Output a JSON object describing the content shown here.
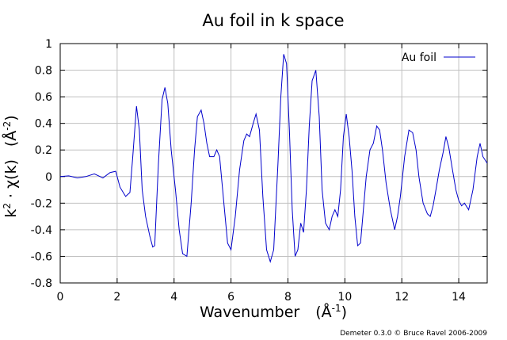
{
  "chart_data": {
    "type": "line",
    "title": "Au foil in k space",
    "xlabel": {
      "main": "Wavenumber",
      "unit_pre": "(Å",
      "unit_sup": "-1",
      "unit_post": ")"
    },
    "ylabel": {
      "k": "k",
      "k_sup": "2",
      "mid": " · χ(k)",
      "unit_pre": "(Å",
      "unit_sup": "-2",
      "unit_post": ")"
    },
    "xlim": [
      0,
      15
    ],
    "ylim": [
      -0.8,
      1
    ],
    "xticks": [
      0,
      2,
      4,
      6,
      8,
      10,
      12,
      14
    ],
    "xtick_labels": [
      "0",
      "2",
      "4",
      "6",
      "8",
      "10",
      "12",
      "14"
    ],
    "yticks": [
      -0.8,
      -0.6,
      -0.4,
      -0.2,
      0,
      0.2,
      0.4,
      0.6,
      0.8,
      1
    ],
    "ytick_labels": [
      "-0.8",
      "-0.6",
      "-0.4",
      "-0.2",
      "0",
      "0.2",
      "0.4",
      "0.6",
      "0.8",
      "1"
    ],
    "grid": true,
    "legend_position": "top-right",
    "series": [
      {
        "name": "Au foil",
        "color": "#0000cc",
        "x": [
          0,
          0.3,
          0.6,
          0.9,
          1.2,
          1.5,
          1.75,
          1.95,
          2.1,
          2.3,
          2.45,
          2.55,
          2.68,
          2.78,
          2.88,
          3.0,
          3.15,
          3.25,
          3.32,
          3.45,
          3.58,
          3.68,
          3.78,
          3.9,
          4.05,
          4.18,
          4.3,
          4.45,
          4.6,
          4.72,
          4.82,
          4.95,
          5.05,
          5.15,
          5.25,
          5.4,
          5.5,
          5.6,
          5.75,
          5.88,
          6.0,
          6.15,
          6.3,
          6.45,
          6.55,
          6.65,
          6.78,
          6.88,
          7.0,
          7.12,
          7.25,
          7.38,
          7.5,
          7.65,
          7.75,
          7.85,
          7.95,
          8.05,
          8.15,
          8.25,
          8.35,
          8.45,
          8.55,
          8.65,
          8.75,
          8.85,
          8.98,
          9.1,
          9.2,
          9.32,
          9.45,
          9.55,
          9.65,
          9.75,
          9.85,
          9.95,
          10.05,
          10.15,
          10.25,
          10.35,
          10.45,
          10.55,
          10.65,
          10.75,
          10.88,
          11.0,
          11.12,
          11.22,
          11.32,
          11.45,
          11.6,
          11.75,
          11.85,
          11.95,
          12.1,
          12.25,
          12.38,
          12.5,
          12.6,
          12.75,
          12.9,
          13.0,
          13.1,
          13.2,
          13.32,
          13.45,
          13.55,
          13.65,
          13.78,
          13.9,
          14.0,
          14.1,
          14.2,
          14.35,
          14.5,
          14.65,
          14.75,
          14.85,
          15.0
        ],
        "y": [
          0.0,
          0.005,
          -0.01,
          0.0,
          0.02,
          -0.01,
          0.03,
          0.04,
          -0.08,
          -0.15,
          -0.12,
          0.15,
          0.53,
          0.35,
          -0.1,
          -0.3,
          -0.45,
          -0.53,
          -0.52,
          0.1,
          0.58,
          0.67,
          0.55,
          0.2,
          -0.1,
          -0.4,
          -0.58,
          -0.6,
          -0.2,
          0.2,
          0.45,
          0.5,
          0.4,
          0.25,
          0.15,
          0.15,
          0.2,
          0.15,
          -0.2,
          -0.5,
          -0.55,
          -0.3,
          0.05,
          0.27,
          0.32,
          0.3,
          0.4,
          0.47,
          0.35,
          -0.15,
          -0.55,
          -0.64,
          -0.55,
          0.1,
          0.6,
          0.92,
          0.85,
          0.35,
          -0.25,
          -0.6,
          -0.55,
          -0.35,
          -0.42,
          -0.1,
          0.38,
          0.72,
          0.8,
          0.45,
          -0.1,
          -0.35,
          -0.4,
          -0.3,
          -0.25,
          -0.3,
          -0.1,
          0.3,
          0.47,
          0.3,
          0.05,
          -0.3,
          -0.52,
          -0.5,
          -0.25,
          0.0,
          0.2,
          0.25,
          0.38,
          0.35,
          0.2,
          -0.05,
          -0.25,
          -0.4,
          -0.3,
          -0.15,
          0.15,
          0.35,
          0.33,
          0.2,
          0.0,
          -0.2,
          -0.28,
          -0.3,
          -0.22,
          -0.1,
          0.05,
          0.18,
          0.3,
          0.22,
          0.05,
          -0.1,
          -0.18,
          -0.22,
          -0.2,
          -0.25,
          -0.1,
          0.15,
          0.25,
          0.15,
          0.1
        ]
      }
    ]
  },
  "footer_text": "Demeter 0.3.0 © Bruce Ravel 2006-2009"
}
